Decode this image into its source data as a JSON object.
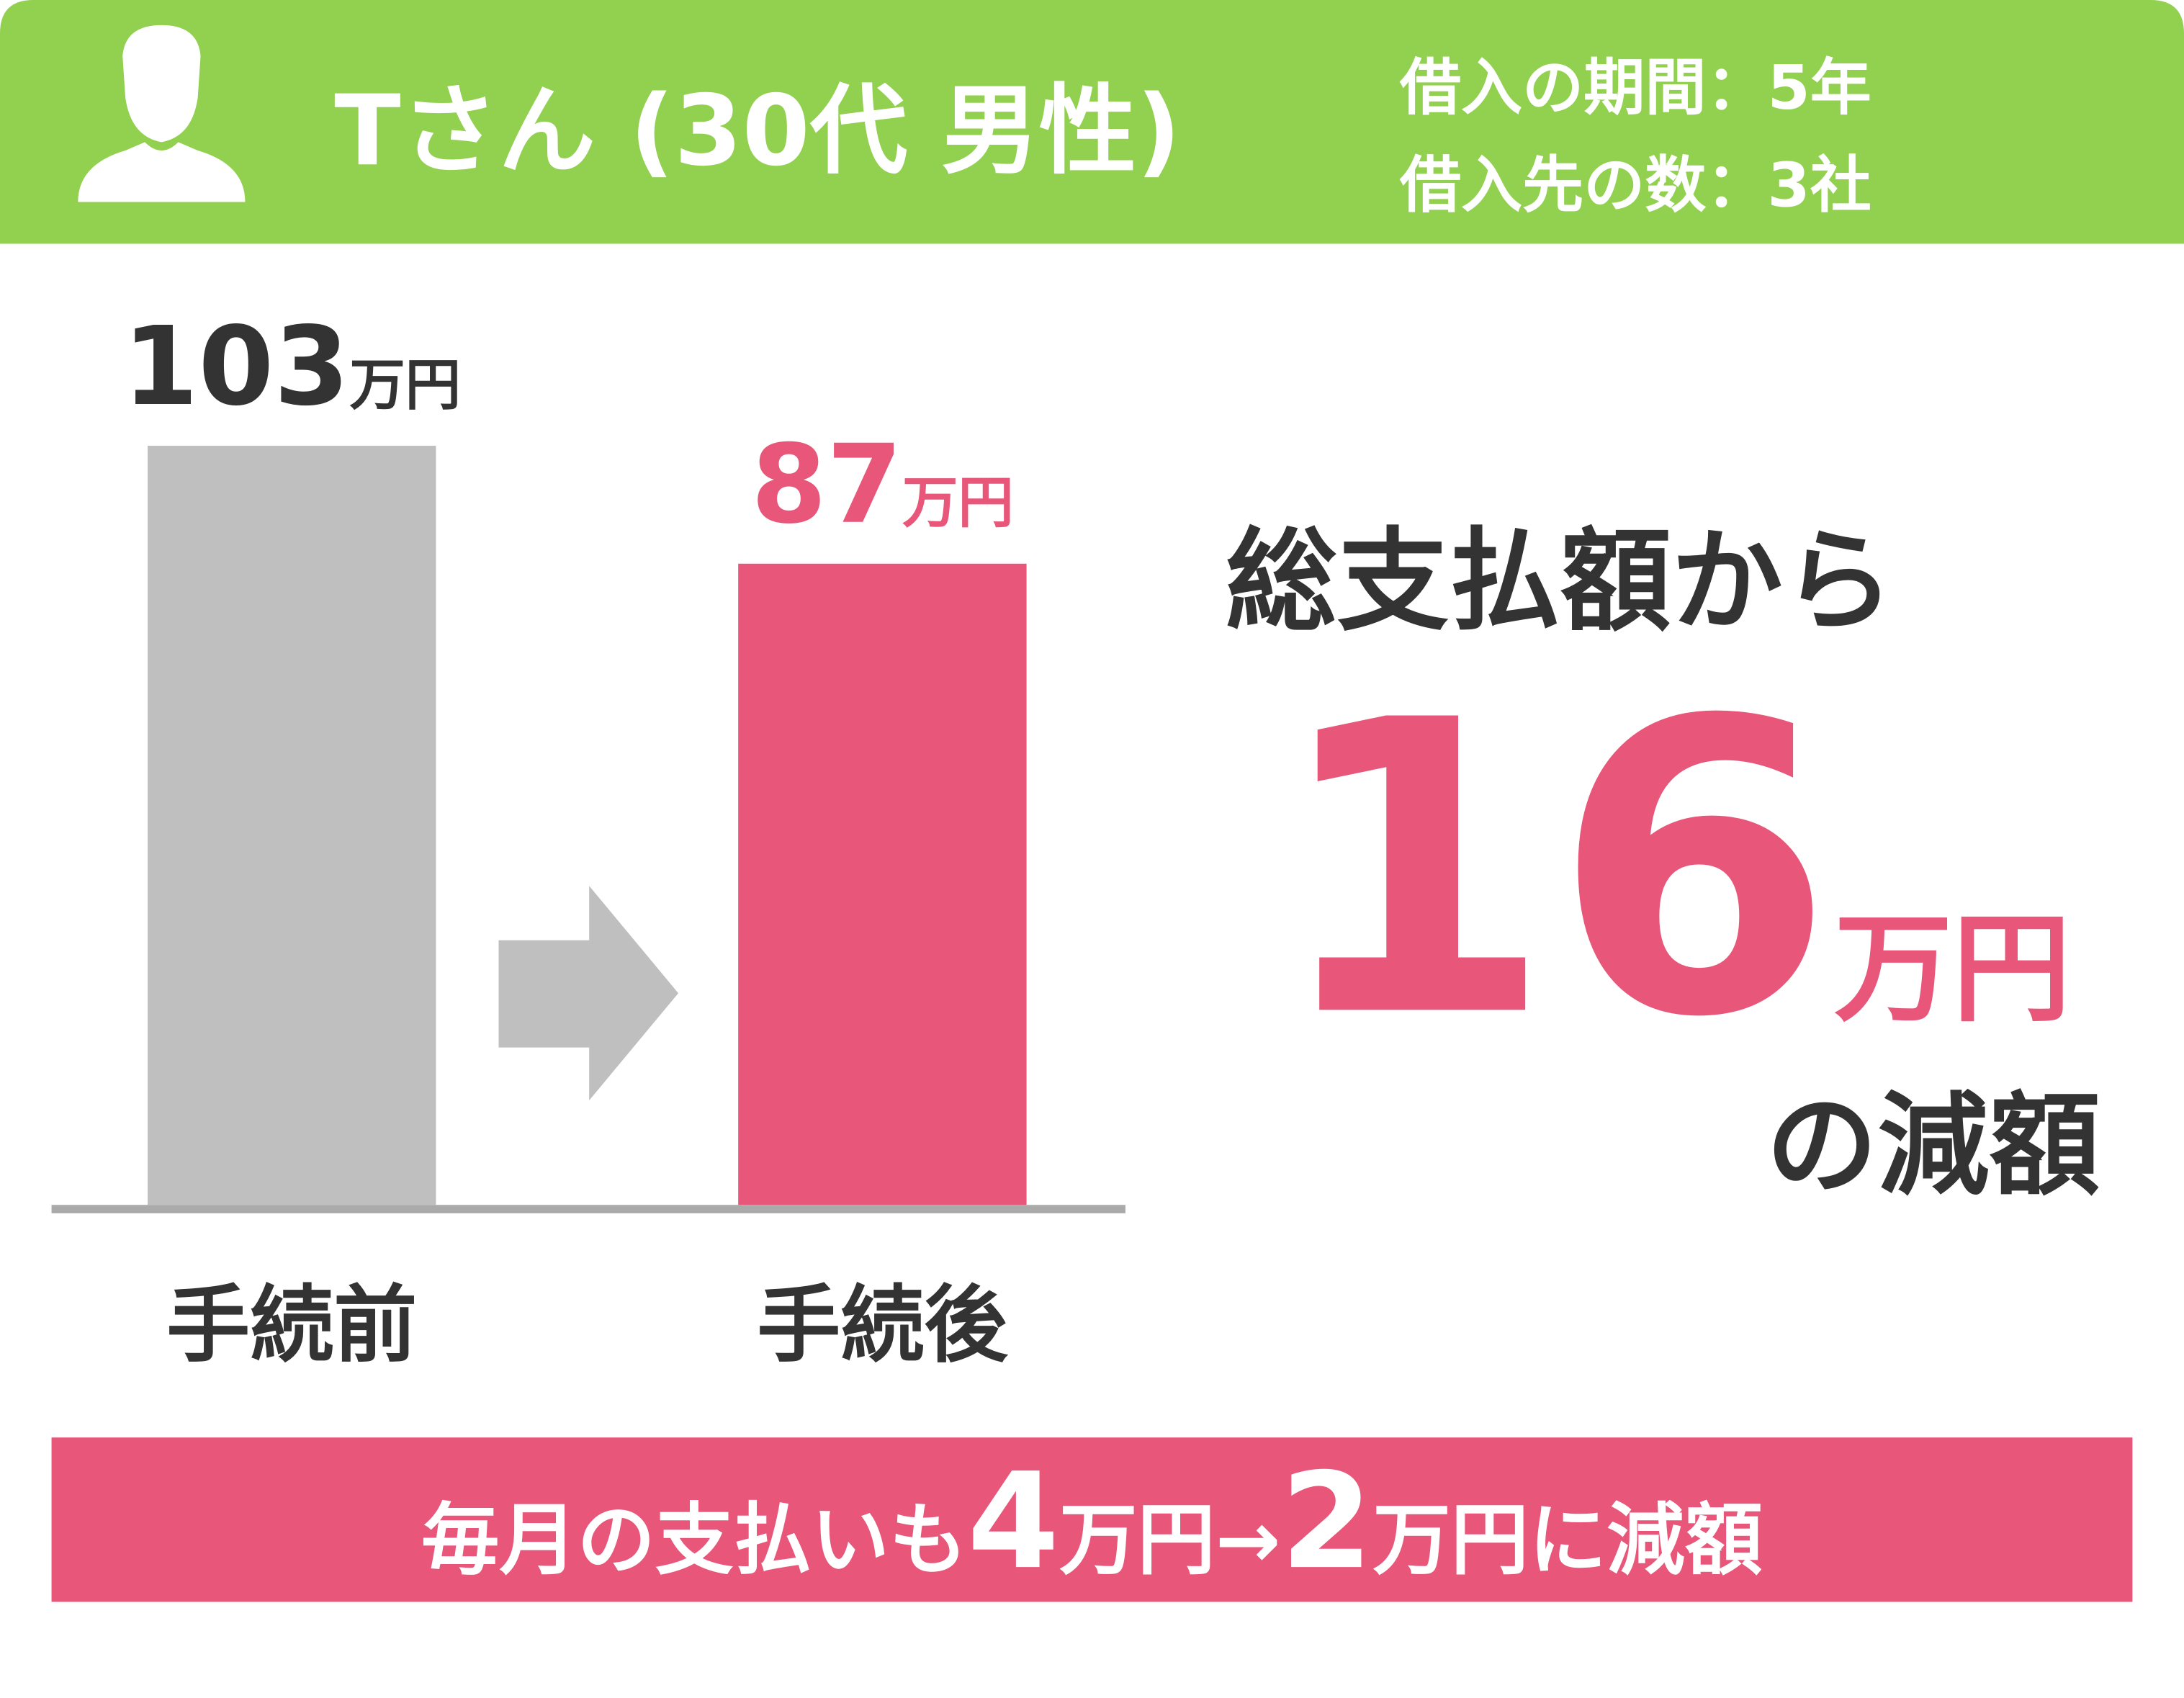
{
  "header": {
    "name": "Tさん (30代 男性)",
    "info": [
      "借入の期間：5年",
      "借入先の数：3社"
    ]
  },
  "chart_data": {
    "type": "bar",
    "categories": [
      "手続前",
      "手続後"
    ],
    "values": [
      103,
      87
    ],
    "value_labels": [
      "103万円",
      "87万円"
    ],
    "colors": [
      "#bfbfbf",
      "#e8577a"
    ]
  },
  "summary": {
    "lead": "総支払額から",
    "amount": "16万円",
    "tail": "の減額"
  },
  "banner": "毎月の支払いも4万円→2万円に減額"
}
